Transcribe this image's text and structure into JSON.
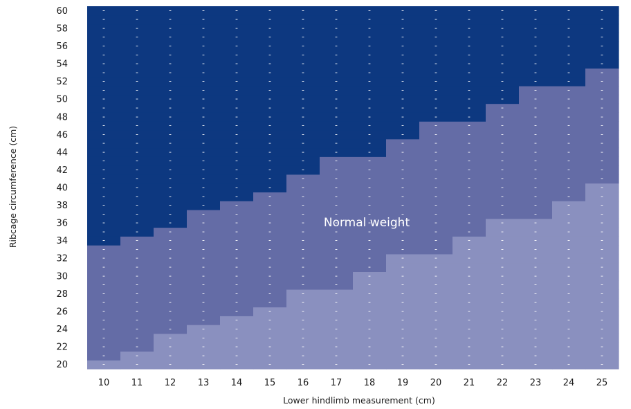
{
  "chart_data": {
    "type": "heatmap",
    "title": "",
    "xlabel": "Lower hindlimb measurement (cm)",
    "ylabel": "Ribcage circumference (cm)",
    "x": [
      10,
      11,
      12,
      13,
      14,
      15,
      16,
      17,
      18,
      19,
      20,
      21,
      22,
      23,
      24,
      25
    ],
    "y": [
      20,
      21,
      22,
      23,
      24,
      25,
      26,
      27,
      28,
      29,
      30,
      31,
      32,
      33,
      34,
      35,
      36,
      37,
      38,
      39,
      40,
      41,
      42,
      43,
      44,
      45,
      46,
      47,
      48,
      49,
      50,
      51,
      52,
      53,
      54,
      55,
      56,
      57,
      58,
      59,
      60
    ],
    "y_ticks": [
      20,
      22,
      24,
      26,
      28,
      30,
      32,
      34,
      36,
      38,
      40,
      42,
      44,
      46,
      48,
      50,
      52,
      54,
      56,
      58,
      60
    ],
    "cell_mark": "-",
    "region_label": "Normal weight",
    "normal_lower_bound": [
      21,
      22,
      24,
      25,
      26,
      27,
      29,
      29,
      31,
      33,
      33,
      35,
      37,
      37,
      39,
      41
    ],
    "normal_upper_bound": [
      33,
      34,
      35,
      37,
      38,
      39,
      41,
      43,
      43,
      45,
      47,
      47,
      49,
      51,
      51,
      53
    ],
    "colors": {
      "below_normal": "#8a90bf",
      "normal": "#646ca6",
      "above_normal": "#0d3880"
    },
    "grid": false,
    "legend": "none"
  }
}
